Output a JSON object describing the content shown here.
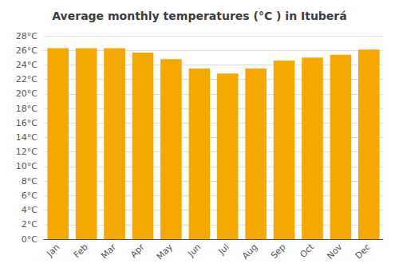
{
  "chart_data": {
    "type": "bar",
    "title": "Average monthly temperatures (°C ) in Ituberá",
    "categories": [
      "Jan",
      "Feb",
      "Mar",
      "Apr",
      "May",
      "Jun",
      "Jul",
      "Aug",
      "Sep",
      "Oct",
      "Nov",
      "Dec"
    ],
    "values": [
      26.3,
      26.3,
      26.3,
      25.7,
      24.8,
      23.5,
      22.8,
      23.5,
      24.6,
      25.0,
      25.4,
      26.1
    ],
    "color": "#F5A800",
    "ylim": [
      0,
      28
    ],
    "yticks": [
      {
        "value": 0,
        "label": "0°C"
      },
      {
        "value": 2,
        "label": "2°C"
      },
      {
        "value": 4,
        "label": "4°C"
      },
      {
        "value": 6,
        "label": "6°C"
      },
      {
        "value": 8,
        "label": "8°C"
      },
      {
        "value": 10,
        "label": "10°C"
      },
      {
        "value": 12,
        "label": "12°C"
      },
      {
        "value": 14,
        "label": "14°C"
      },
      {
        "value": 16,
        "label": "16°C"
      },
      {
        "value": 18,
        "label": "18°C"
      },
      {
        "value": 20,
        "label": "20°C"
      },
      {
        "value": 22,
        "label": "22°C"
      },
      {
        "value": 24,
        "label": "24°C"
      },
      {
        "value": 26,
        "label": "26°C"
      },
      {
        "value": 28,
        "label": "28°C"
      }
    ],
    "grid": true
  }
}
